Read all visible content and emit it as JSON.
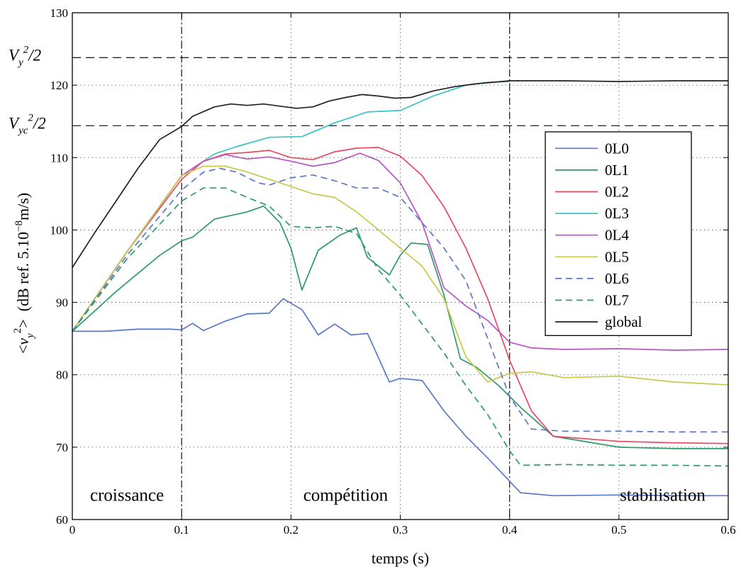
{
  "chart_data": {
    "type": "line",
    "xlabel": "temps (s)",
    "ylabel": "<v_y^2>  (dB ref. 5.10^-8 m/s)",
    "ylabel_parts": {
      "open": "<v",
      "sub": "y",
      "sup": "2",
      "close": ">",
      "units_pre": "(dB ref. 5.10",
      "units_exp": "−8",
      "units_post": "m/s)"
    },
    "xlim": [
      0,
      0.6
    ],
    "ylim": [
      60,
      130
    ],
    "xticks": [
      0,
      0.1,
      0.2,
      0.3,
      0.4,
      0.5,
      0.6
    ],
    "xtick_labels": [
      "0",
      "0.1",
      "0.2",
      "0.3",
      "0.4",
      "0.5",
      "0.6"
    ],
    "yticks": [
      60,
      70,
      80,
      90,
      100,
      110,
      120,
      130
    ],
    "ytick_labels": [
      "60",
      "70",
      "80",
      "90",
      "100",
      "110",
      "120",
      "130"
    ],
    "grid": true,
    "legend_position": "right",
    "phase_lines_x": [
      0.1,
      0.4
    ],
    "reference_lines": [
      {
        "y": 123.8,
        "label_main": "V",
        "label_sub": "y",
        "label_sup": "2",
        "label_tail": "/2"
      },
      {
        "y": 114.4,
        "label_main": "V",
        "label_sub": "yc",
        "label_sup": "2",
        "label_tail": "/2"
      }
    ],
    "annotations": [
      {
        "text": "croissance",
        "x": 0.05,
        "y": 62.6
      },
      {
        "text": "compétition",
        "x": 0.25,
        "y": 62.6
      },
      {
        "text": "stabilisation",
        "x": 0.54,
        "y": 62.6
      }
    ],
    "series": [
      {
        "name": "0L0",
        "color": "#5a78c8",
        "dash": "solid",
        "x": [
          0,
          0.03,
          0.06,
          0.09,
          0.1,
          0.11,
          0.12,
          0.14,
          0.16,
          0.18,
          0.193,
          0.21,
          0.225,
          0.24,
          0.255,
          0.27,
          0.29,
          0.3,
          0.32,
          0.34,
          0.36,
          0.38,
          0.4,
          0.41,
          0.44,
          0.5,
          0.55,
          0.6
        ],
        "y": [
          86,
          86,
          86.3,
          86.3,
          86.2,
          87.1,
          86.1,
          87.4,
          88.4,
          88.5,
          90.5,
          89,
          85.5,
          87,
          85.5,
          85.7,
          79,
          79.5,
          79.2,
          75,
          71.5,
          68.5,
          65.3,
          63.7,
          63.3,
          63.4,
          63.3,
          63.3
        ]
      },
      {
        "name": "0L1",
        "color": "#2e9a6a",
        "dash": "solid",
        "x": [
          0,
          0.04,
          0.08,
          0.1,
          0.11,
          0.13,
          0.16,
          0.175,
          0.19,
          0.2,
          0.21,
          0.225,
          0.245,
          0.26,
          0.27,
          0.29,
          0.3,
          0.31,
          0.325,
          0.34,
          0.355,
          0.37,
          0.39,
          0.41,
          0.44,
          0.5,
          0.55,
          0.6
        ],
        "y": [
          86,
          91.5,
          96.5,
          98.5,
          99,
          101.5,
          102.5,
          103.3,
          101,
          97.5,
          91.7,
          97.2,
          99.3,
          100.3,
          96.2,
          93.8,
          96.5,
          98.2,
          98,
          91,
          82.2,
          81,
          78.5,
          75.5,
          71.5,
          70,
          69.8,
          69.8
        ]
      },
      {
        "name": "0L2",
        "color": "#e84a62",
        "dash": "solid",
        "x": [
          0,
          0.05,
          0.1,
          0.12,
          0.14,
          0.16,
          0.18,
          0.2,
          0.22,
          0.24,
          0.26,
          0.28,
          0.3,
          0.32,
          0.34,
          0.36,
          0.38,
          0.4,
          0.42,
          0.44,
          0.5,
          0.55,
          0.6
        ],
        "y": [
          86,
          97,
          107,
          109.5,
          110.5,
          110.7,
          111,
          110,
          109.7,
          110.8,
          111.3,
          111.4,
          110.2,
          107.5,
          103.2,
          97.5,
          90.5,
          82,
          75,
          71.5,
          70.8,
          70.6,
          70.5
        ]
      },
      {
        "name": "0L3",
        "color": "#38c4c4",
        "dash": "solid",
        "x": [
          0,
          0.05,
          0.1,
          0.13,
          0.15,
          0.18,
          0.21,
          0.24,
          0.27,
          0.3,
          0.33,
          0.36,
          0.38,
          0.4
        ],
        "y": [
          86,
          97,
          107.5,
          110.5,
          111.5,
          112.8,
          112.9,
          114.8,
          116.3,
          116.5,
          118.5,
          120,
          120.4,
          120.5
        ]
      },
      {
        "name": "0L4",
        "color": "#bb55c4",
        "dash": "solid",
        "x": [
          0,
          0.05,
          0.1,
          0.12,
          0.14,
          0.16,
          0.18,
          0.2,
          0.22,
          0.24,
          0.263,
          0.28,
          0.3,
          0.32,
          0.34,
          0.36,
          0.38,
          0.4,
          0.42,
          0.45,
          0.5,
          0.55,
          0.6
        ],
        "y": [
          86,
          97,
          107.5,
          109.5,
          110.4,
          109.8,
          110.1,
          109.5,
          108.8,
          109.3,
          110.6,
          109.6,
          106.5,
          101,
          92,
          89.5,
          87.5,
          84.5,
          83.7,
          83.5,
          83.6,
          83.4,
          83.5
        ]
      },
      {
        "name": "0L5",
        "color": "#c8c84a",
        "dash": "solid",
        "x": [
          0,
          0.05,
          0.1,
          0.12,
          0.14,
          0.16,
          0.18,
          0.2,
          0.22,
          0.24,
          0.26,
          0.28,
          0.3,
          0.32,
          0.34,
          0.36,
          0.38,
          0.4,
          0.42,
          0.45,
          0.5,
          0.55,
          0.6
        ],
        "y": [
          86,
          97,
          107.5,
          108.8,
          108.8,
          108,
          107,
          106,
          105,
          104.5,
          102.5,
          100,
          97.5,
          95,
          90.5,
          82.5,
          79,
          80.2,
          80.4,
          79.6,
          79.8,
          79,
          78.6
        ]
      },
      {
        "name": "0L6",
        "color": "#5a78c8",
        "dash": "dashed",
        "x": [
          0,
          0.05,
          0.1,
          0.12,
          0.135,
          0.15,
          0.17,
          0.18,
          0.2,
          0.22,
          0.24,
          0.26,
          0.28,
          0.3,
          0.32,
          0.34,
          0.36,
          0.38,
          0.4,
          0.42,
          0.45,
          0.5,
          0.55,
          0.6
        ],
        "y": [
          86,
          96.5,
          105.5,
          108,
          108.5,
          108,
          106.5,
          106.2,
          107.2,
          107.6,
          106.8,
          105.8,
          105.8,
          104.5,
          101,
          97.5,
          93,
          85,
          77,
          72.5,
          72.2,
          72.2,
          72.1,
          72.1
        ]
      },
      {
        "name": "0L7",
        "color": "#2e9a6a",
        "dash": "dashed",
        "x": [
          0,
          0.05,
          0.1,
          0.12,
          0.14,
          0.16,
          0.18,
          0.2,
          0.22,
          0.24,
          0.26,
          0.28,
          0.3,
          0.32,
          0.34,
          0.36,
          0.38,
          0.4,
          0.41,
          0.45,
          0.5,
          0.55,
          0.6
        ],
        "y": [
          86,
          96,
          104,
          105.8,
          105.8,
          104.5,
          103.3,
          100.5,
          100.3,
          100.5,
          99.5,
          94.5,
          91,
          87,
          83,
          78.5,
          74.5,
          69.5,
          67.5,
          67.6,
          67.5,
          67.5,
          67.4
        ]
      },
      {
        "name": "global",
        "color": "#222222",
        "dash": "solid",
        "x": [
          0,
          0.02,
          0.04,
          0.06,
          0.08,
          0.1,
          0.11,
          0.13,
          0.145,
          0.16,
          0.175,
          0.19,
          0.205,
          0.22,
          0.235,
          0.25,
          0.265,
          0.28,
          0.295,
          0.31,
          0.33,
          0.35,
          0.37,
          0.4,
          0.45,
          0.5,
          0.55,
          0.6
        ],
        "y": [
          94.8,
          99.5,
          104,
          108.5,
          112.5,
          114.3,
          115.7,
          117,
          117.4,
          117.2,
          117.4,
          117.1,
          116.8,
          117,
          117.8,
          118.3,
          118.7,
          118.5,
          118.2,
          118.3,
          119.2,
          119.8,
          120.2,
          120.6,
          120.6,
          120.5,
          120.6,
          120.6
        ]
      }
    ]
  }
}
